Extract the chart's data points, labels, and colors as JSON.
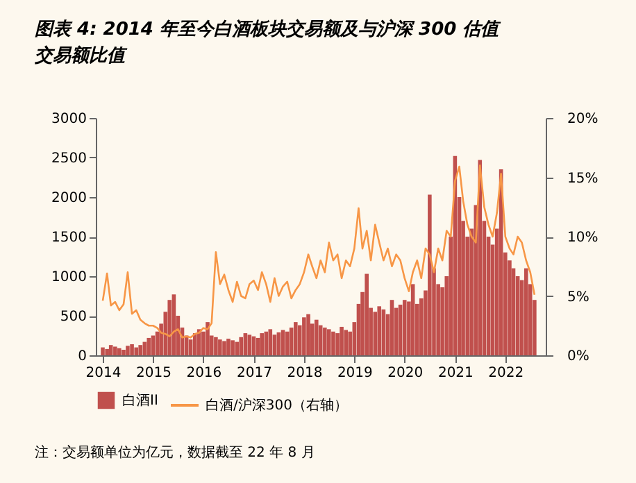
{
  "chart_data": {
    "type": "bar",
    "title": "图表 4: 2014 年至今白酒板块交易额及与沪深 300 估值交易额比值",
    "x": [
      "2014-01",
      "2014-02",
      "2014-03",
      "2014-04",
      "2014-05",
      "2014-06",
      "2014-07",
      "2014-08",
      "2014-09",
      "2014-10",
      "2014-11",
      "2014-12",
      "2015-01",
      "2015-02",
      "2015-03",
      "2015-04",
      "2015-05",
      "2015-06",
      "2015-07",
      "2015-08",
      "2015-09",
      "2015-10",
      "2015-11",
      "2015-12",
      "2016-01",
      "2016-02",
      "2016-03",
      "2016-04",
      "2016-05",
      "2016-06",
      "2016-07",
      "2016-08",
      "2016-09",
      "2016-10",
      "2016-11",
      "2016-12",
      "2017-01",
      "2017-02",
      "2017-03",
      "2017-04",
      "2017-05",
      "2017-06",
      "2017-07",
      "2017-08",
      "2017-09",
      "2017-10",
      "2017-11",
      "2017-12",
      "2018-01",
      "2018-02",
      "2018-03",
      "2018-04",
      "2018-05",
      "2018-06",
      "2018-07",
      "2018-08",
      "2018-09",
      "2018-10",
      "2018-11",
      "2018-12",
      "2019-01",
      "2019-02",
      "2019-03",
      "2019-04",
      "2019-05",
      "2019-06",
      "2019-07",
      "2019-08",
      "2019-09",
      "2019-10",
      "2019-11",
      "2019-12",
      "2020-01",
      "2020-02",
      "2020-03",
      "2020-04",
      "2020-05",
      "2020-06",
      "2020-07",
      "2020-08",
      "2020-09",
      "2020-10",
      "2020-11",
      "2020-12",
      "2021-01",
      "2021-02",
      "2021-03",
      "2021-04",
      "2021-05",
      "2021-06",
      "2021-07",
      "2021-08",
      "2021-09",
      "2021-10",
      "2021-11",
      "2021-12",
      "2022-01",
      "2022-02",
      "2022-03",
      "2022-04",
      "2022-05",
      "2022-06",
      "2022-07",
      "2022-08"
    ],
    "series": [
      {
        "name": "白酒II",
        "color": "#c0504d",
        "values": [
          100,
          80,
          130,
          110,
          90,
          70,
          120,
          140,
          100,
          130,
          170,
          220,
          250,
          300,
          400,
          550,
          700,
          770,
          500,
          350,
          250,
          200,
          280,
          330,
          300,
          420,
          250,
          230,
          200,
          180,
          210,
          190,
          170,
          230,
          280,
          260,
          240,
          220,
          280,
          300,
          330,
          260,
          290,
          320,
          300,
          350,
          420,
          380,
          480,
          520,
          400,
          450,
          380,
          350,
          330,
          300,
          280,
          360,
          320,
          300,
          420,
          650,
          800,
          1030,
          600,
          550,
          620,
          580,
          520,
          700,
          600,
          640,
          700,
          680,
          900,
          650,
          720,
          820,
          2030,
          1100,
          900,
          860,
          1000,
          1500,
          2520,
          2000,
          1700,
          1500,
          1600,
          1900,
          2470,
          1700,
          1500,
          1400,
          1600,
          2350,
          1300,
          1200,
          1100,
          1000,
          950,
          1100,
          900,
          700
        ]
      },
      {
        "name": "白酒/沪深300（右轴）",
        "type": "line",
        "axis": "y2",
        "color": "#f79646",
        "values": [
          4.6,
          6.9,
          4.2,
          4.5,
          3.8,
          4.3,
          7.0,
          3.5,
          3.8,
          3.0,
          2.7,
          2.5,
          2.5,
          2.3,
          1.9,
          1.8,
          1.6,
          2.0,
          2.2,
          1.5,
          1.6,
          1.5,
          1.8,
          1.9,
          2.3,
          2.2,
          2.7,
          8.7,
          6.0,
          6.8,
          5.5,
          4.5,
          6.2,
          5.0,
          4.8,
          6.0,
          6.3,
          5.5,
          7.0,
          6.0,
          4.5,
          6.5,
          5.0,
          5.8,
          6.2,
          4.8,
          5.5,
          6.0,
          7.0,
          8.5,
          7.5,
          6.5,
          8.0,
          7.0,
          9.5,
          8.0,
          8.5,
          6.5,
          8.0,
          7.5,
          9.0,
          12.4,
          9.0,
          10.5,
          8.0,
          11.0,
          9.5,
          8.0,
          9.0,
          7.5,
          8.5,
          8.0,
          6.5,
          5.4,
          7.0,
          8.0,
          6.5,
          9.0,
          8.5,
          7.0,
          9.0,
          8.0,
          10.5,
          10.0,
          14.7,
          15.9,
          13.0,
          11.0,
          10.0,
          9.5,
          16.0,
          12.5,
          11.0,
          10.0,
          12.0,
          15.3,
          10.0,
          9.0,
          8.5,
          10.0,
          9.5,
          8.0,
          7.0,
          5.1
        ]
      }
    ],
    "xlim": [
      "2014-01",
      "2022-09"
    ],
    "xticks": [
      "2014",
      "2015",
      "2016",
      "2017",
      "2018",
      "2019",
      "2020",
      "2021",
      "2022"
    ],
    "ylim": [
      0,
      3000
    ],
    "yticks": [
      0,
      500,
      1000,
      1500,
      2000,
      2500,
      3000
    ],
    "y2lim": [
      0,
      20
    ],
    "y2ticks": [
      {
        "value": 0,
        "label": "0%"
      },
      {
        "value": 5,
        "label": "5%"
      },
      {
        "value": 10,
        "label": "10%"
      },
      {
        "value": 15,
        "label": "15%"
      },
      {
        "value": 20,
        "label": "20%"
      }
    ],
    "legend": "bottom",
    "grid": false,
    "annotations": [
      "注：交易额单位为亿元，数据截至 22 年 8 月"
    ]
  }
}
